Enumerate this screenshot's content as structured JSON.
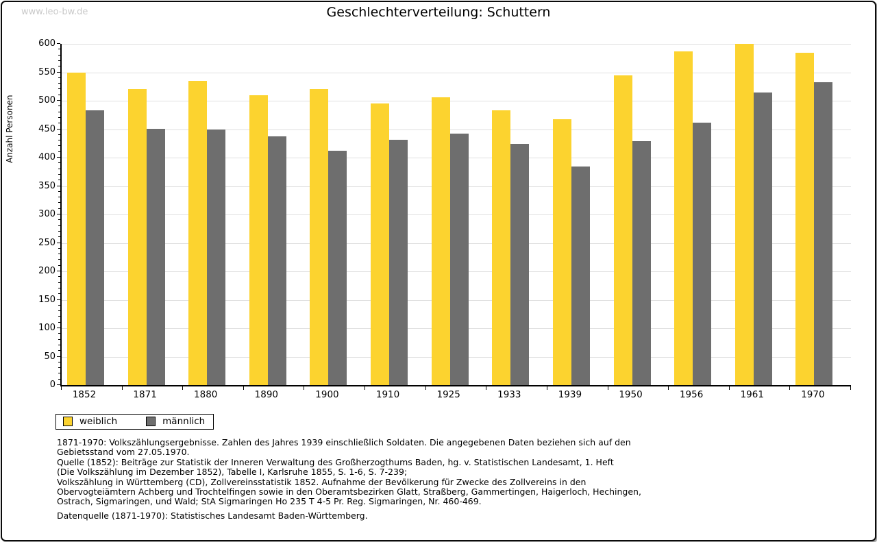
{
  "watermark": "www.leo-bw.de",
  "title": "Geschlechterverteilung: Schuttern",
  "chart_data": {
    "type": "bar",
    "title": "Geschlechterverteilung: Schuttern",
    "xlabel": "",
    "ylabel": "Anzahl Personen",
    "ylim": [
      0,
      600
    ],
    "ytick_step": 50,
    "ytick_minor_step": 10,
    "grid": true,
    "legend_position": "bottom-left",
    "categories": [
      "1852",
      "1871",
      "1880",
      "1890",
      "1900",
      "1910",
      "1925",
      "1933",
      "1939",
      "1950",
      "1956",
      "1961",
      "1970"
    ],
    "series": [
      {
        "name": "weiblich",
        "color": "#FCD32F",
        "values": [
          550,
          521,
          535,
          510,
          521,
          495,
          506,
          483,
          468,
          544,
          587,
          600,
          584
        ]
      },
      {
        "name": "männlich",
        "color": "#6E6E6E",
        "values": [
          483,
          451,
          449,
          437,
          412,
          431,
          442,
          424,
          384,
          429,
          462,
          514,
          533
        ]
      }
    ]
  },
  "colors": {
    "bar_weiblich": "#FCD32F",
    "bar_maennlich": "#6E6E6E",
    "gridline": "#DFDFDF",
    "watermark": "#C9C9C9",
    "axis": "#000000"
  },
  "footnotes": [
    "1871-1970: Volkszählungsergebnisse. Zahlen des Jahres 1939 einschließlich Soldaten. Die angegebenen Daten beziehen sich auf den",
    "Gebietsstand vom 27.05.1970.",
    "Quelle (1852): Beiträge zur Statistik der Inneren Verwaltung des Großherzogthums Baden, hg. v. Statistischen Landesamt, 1. Heft",
    "(Die Volkszählung im Dezember 1852), Tabelle I, Karlsruhe 1855, S. 1-6, S. 7-239;",
    "Volkszählung in Württemberg (CD), Zollvereinsstatistik 1852. Aufnahme der Bevölkerung für Zwecke des Zollvereins in den",
    "Obervogteiämtern Achberg und Trochtelfingen sowie in den Oberamtsbezirken Glatt, Straßberg, Gammertingen, Haigerloch, Hechingen,",
    "Ostrach, Sigmaringen, und Wald; StA Sigmaringen Ho 235 T 4-5 Pr. Reg. Sigmaringen, Nr. 460-469."
  ],
  "datenquelle": "Datenquelle (1871-1970): Statistisches Landesamt Baden-Württemberg."
}
